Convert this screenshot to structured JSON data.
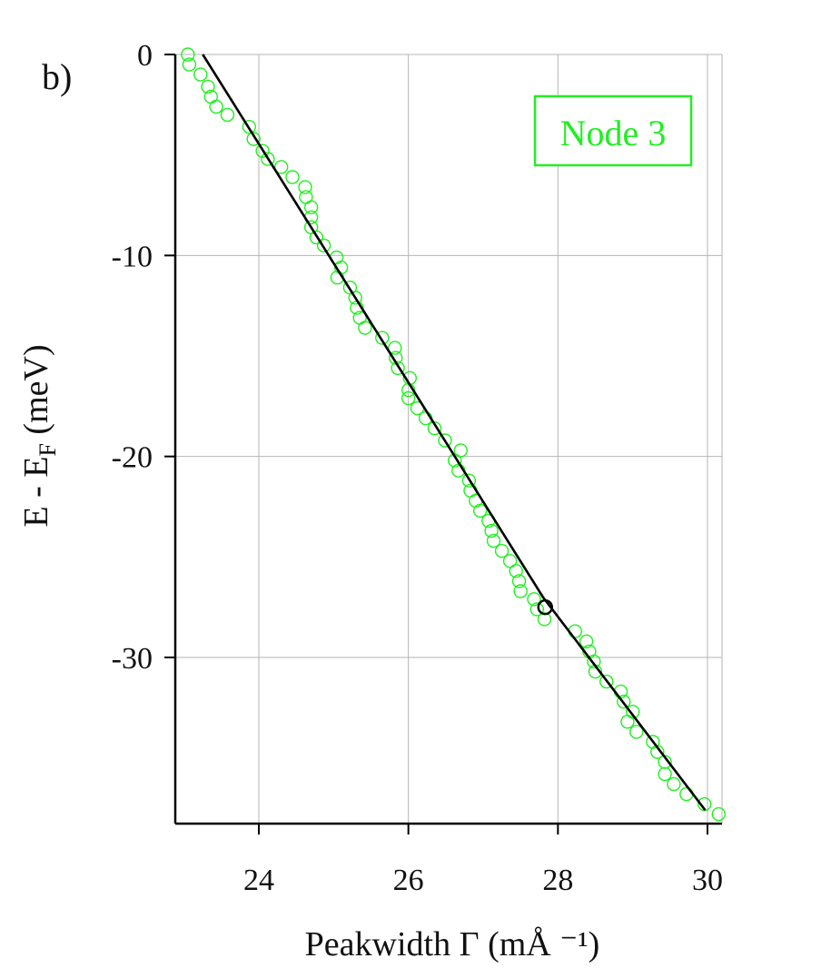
{
  "panel_label": "b)",
  "legend": {
    "label": "Node 3",
    "color": "#22ee22"
  },
  "colors": {
    "data": "#22ee22",
    "fit": "#000000",
    "grid": "#b5b5b5",
    "marker": "#000000"
  },
  "chart_data": {
    "type": "scatter",
    "title": "",
    "xlabel": "Peakwidth Γ (mÅ ⁻¹)",
    "ylabel": "E - E",
    "ylabel_subscript": "F",
    "ylabel_suffix": " (meV)",
    "xlim": [
      22.9,
      30.2
    ],
    "ylim": [
      -38.2,
      0
    ],
    "xticks": [
      24,
      26,
      28,
      30
    ],
    "yticks": [
      0,
      -10,
      -20,
      -30
    ],
    "xtick_labels": [
      "24",
      "26",
      "28",
      "30"
    ],
    "ytick_labels": [
      "0",
      "-10",
      "-20",
      "-30"
    ],
    "grid": true,
    "legend_position": "top-right",
    "series": [
      {
        "name": "Node 3",
        "marker": "open-circle",
        "points": [
          [
            23.05,
            0.0
          ],
          [
            23.07,
            -0.5
          ],
          [
            23.22,
            -1.0
          ],
          [
            23.32,
            -1.6
          ],
          [
            23.36,
            -2.1
          ],
          [
            23.43,
            -2.6
          ],
          [
            23.58,
            -3.0
          ],
          [
            23.87,
            -3.6
          ],
          [
            23.93,
            -4.2
          ],
          [
            24.05,
            -4.8
          ],
          [
            24.12,
            -5.2
          ],
          [
            24.3,
            -5.6
          ],
          [
            24.45,
            -6.1
          ],
          [
            24.62,
            -6.6
          ],
          [
            24.63,
            -7.1
          ],
          [
            24.7,
            -7.6
          ],
          [
            24.7,
            -8.1
          ],
          [
            24.7,
            -8.6
          ],
          [
            24.77,
            -9.1
          ],
          [
            24.87,
            -9.5
          ],
          [
            25.04,
            -10.1
          ],
          [
            25.05,
            -11.1
          ],
          [
            25.1,
            -10.6
          ],
          [
            25.22,
            -11.6
          ],
          [
            25.29,
            -12.1
          ],
          [
            25.31,
            -12.6
          ],
          [
            25.35,
            -13.1
          ],
          [
            25.42,
            -13.6
          ],
          [
            25.65,
            -14.1
          ],
          [
            25.82,
            -14.6
          ],
          [
            25.83,
            -15.1
          ],
          [
            25.86,
            -15.6
          ],
          [
            26.02,
            -16.1
          ],
          [
            26.0,
            -16.7
          ],
          [
            26.0,
            -17.1
          ],
          [
            26.12,
            -17.6
          ],
          [
            26.23,
            -18.1
          ],
          [
            26.35,
            -18.6
          ],
          [
            26.49,
            -19.2
          ],
          [
            26.7,
            -19.7
          ],
          [
            26.62,
            -20.2
          ],
          [
            26.67,
            -20.7
          ],
          [
            26.81,
            -21.2
          ],
          [
            26.83,
            -21.7
          ],
          [
            26.9,
            -22.2
          ],
          [
            26.96,
            -22.7
          ],
          [
            27.07,
            -23.2
          ],
          [
            27.11,
            -23.7
          ],
          [
            27.14,
            -24.2
          ],
          [
            27.25,
            -24.7
          ],
          [
            27.36,
            -25.2
          ],
          [
            27.44,
            -25.7
          ],
          [
            27.48,
            -26.2
          ],
          [
            27.5,
            -26.7
          ],
          [
            27.68,
            -27.1
          ],
          [
            27.72,
            -27.6
          ],
          [
            27.82,
            -28.1
          ],
          [
            28.23,
            -28.7
          ],
          [
            28.38,
            -29.2
          ],
          [
            28.42,
            -29.7
          ],
          [
            28.48,
            -30.2
          ],
          [
            28.5,
            -30.7
          ],
          [
            28.65,
            -31.2
          ],
          [
            28.84,
            -31.7
          ],
          [
            28.88,
            -32.2
          ],
          [
            29.0,
            -32.7
          ],
          [
            28.93,
            -33.2
          ],
          [
            29.05,
            -33.7
          ],
          [
            29.27,
            -34.2
          ],
          [
            29.33,
            -34.7
          ],
          [
            29.43,
            -35.2
          ],
          [
            29.43,
            -35.8
          ],
          [
            29.55,
            -36.3
          ],
          [
            29.72,
            -36.8
          ],
          [
            29.96,
            -37.3
          ],
          [
            30.15,
            -37.8
          ]
        ]
      }
    ],
    "fit_line": [
      [
        23.25,
        0.0
      ],
      [
        27.8,
        -27.0
      ],
      [
        29.97,
        -37.6
      ]
    ],
    "highlight_point": [
      27.83,
      -27.5
    ]
  }
}
